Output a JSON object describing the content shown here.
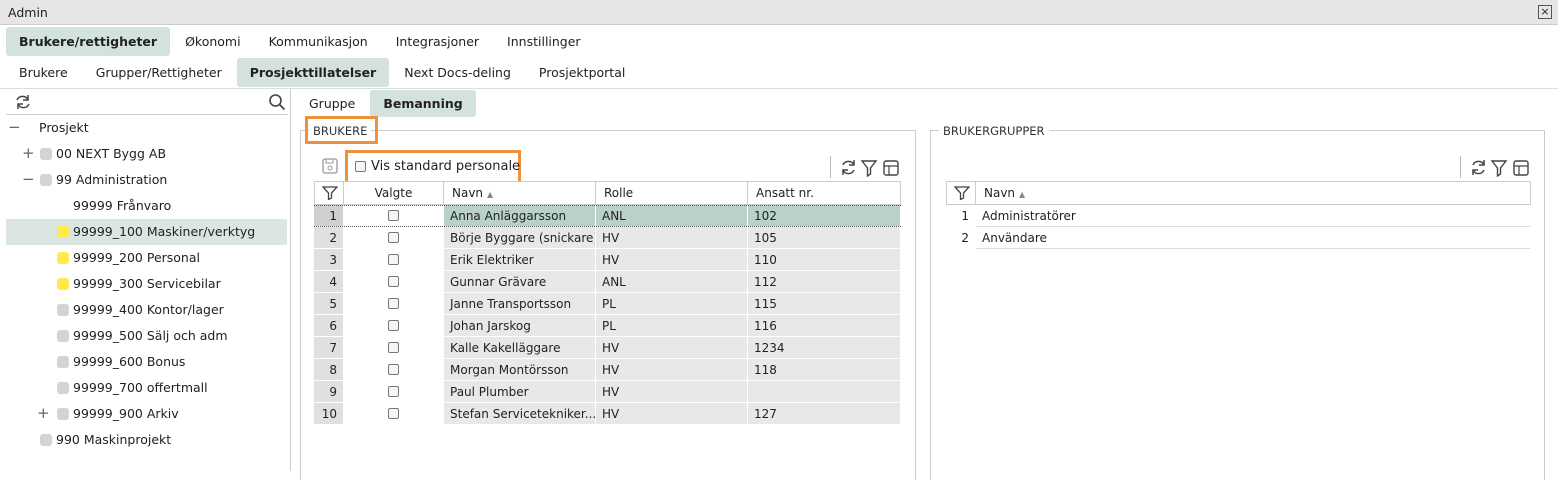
{
  "window": {
    "title": "Admin"
  },
  "tabs": {
    "items": [
      "Brukere/rettigheter",
      "Økonomi",
      "Kommunikasjon",
      "Integrasjoner",
      "Innstillinger"
    ],
    "active": 0
  },
  "subtabs": {
    "items": [
      "Brukere",
      "Grupper/Rettigheter",
      "Prosjekttillatelser",
      "Next Docs-deling",
      "Prosjektportal"
    ],
    "active": 2
  },
  "tree": {
    "selected": 4,
    "nodes": [
      {
        "label": "Prosjekt",
        "depth": 0,
        "expanded": true,
        "icon": null
      },
      {
        "label": "00 NEXT Bygg AB",
        "depth": 1,
        "expanded": false,
        "icon": "gray"
      },
      {
        "label": "99 Administration",
        "depth": 1,
        "expanded": true,
        "icon": "gray"
      },
      {
        "label": "99999 Frånvaro",
        "depth": 2,
        "expanded": null,
        "icon": "white"
      },
      {
        "label": "99999_100 Maskiner/verktyg",
        "depth": 2,
        "expanded": null,
        "icon": "yellow"
      },
      {
        "label": "99999_200 Personal",
        "depth": 2,
        "expanded": null,
        "icon": "yellow"
      },
      {
        "label": "99999_300 Servicebilar",
        "depth": 2,
        "expanded": null,
        "icon": "yellow"
      },
      {
        "label": "99999_400 Kontor/lager",
        "depth": 2,
        "expanded": null,
        "icon": "gray"
      },
      {
        "label": "99999_500 Sälj och adm",
        "depth": 2,
        "expanded": null,
        "icon": "gray"
      },
      {
        "label": "99999_600 Bonus",
        "depth": 2,
        "expanded": null,
        "icon": "gray"
      },
      {
        "label": "99999_700 offertmall",
        "depth": 2,
        "expanded": null,
        "icon": "gray"
      },
      {
        "label": "99999_900 Arkiv",
        "depth": 2,
        "expanded": false,
        "icon": "gray"
      },
      {
        "label": "990 Maskinprojekt",
        "depth": 1,
        "expanded": null,
        "icon": "gray"
      }
    ]
  },
  "panel_tabs": {
    "items": [
      "Gruppe",
      "Bemanning"
    ],
    "active": 1
  },
  "users": {
    "title": "BRUKERE",
    "checkbox_label": "Vis standard personale",
    "columns": [
      "Valgte",
      "Navn",
      "Rolle",
      "Ansatt nr."
    ],
    "rows": [
      [
        1,
        "Anna Anläggarsson",
        "ANL",
        "102"
      ],
      [
        2,
        "Börje Byggare (snickare)",
        "HV",
        "105"
      ],
      [
        3,
        "Erik Elektriker",
        "HV",
        "110"
      ],
      [
        4,
        "Gunnar Grävare",
        "ANL",
        "112"
      ],
      [
        5,
        "Janne Transportsson",
        "PL",
        "115"
      ],
      [
        6,
        "Johan Jarskog",
        "PL",
        "116"
      ],
      [
        7,
        "Kalle Kakelläggare",
        "HV",
        "1234"
      ],
      [
        8,
        "Morgan Montörsson",
        "HV",
        "118"
      ],
      [
        9,
        "Paul Plumber",
        "HV",
        null
      ],
      [
        10,
        "Stefan Servicetekniker...",
        "HV",
        "127"
      ]
    ]
  },
  "groups": {
    "title": "BRUKERGRUPPER",
    "columns": [
      "Navn"
    ],
    "rows": [
      [
        1,
        "Administratörer"
      ],
      [
        2,
        "Användare"
      ]
    ]
  }
}
